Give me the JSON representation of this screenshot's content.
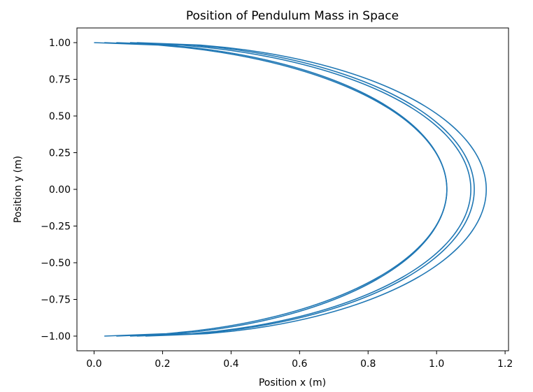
{
  "chart_data": {
    "type": "line",
    "title": "Position of Pendulum Mass in Space",
    "xlabel": "Position x (m)",
    "ylabel": "Position y (m)",
    "xlim": [
      -0.05,
      1.21
    ],
    "ylim": [
      -1.1,
      1.1
    ],
    "x_ticks": [
      0.0,
      0.2,
      0.4,
      0.6,
      0.8,
      1.0,
      1.2
    ],
    "x_tick_labels": [
      "0.0",
      "0.2",
      "0.4",
      "0.6",
      "0.8",
      "1.0",
      "1.2"
    ],
    "y_ticks": [
      1.0,
      0.75,
      0.5,
      0.25,
      0.0,
      -0.25,
      -0.5,
      -0.75,
      -1.0
    ],
    "y_tick_labels": [
      "1.00",
      "0.75",
      "0.50",
      "0.25",
      "0.00",
      "−0.25",
      "−0.50",
      "−0.75",
      "−1.00"
    ],
    "grid": false,
    "legend": false,
    "series": [
      {
        "color": "#1f77b4",
        "arcs": [
          {
            "x_start": 0.0,
            "x_end": 0.03,
            "x_max": 1.03
          },
          {
            "x_start": 0.03,
            "x_end": 0.065,
            "x_max": 1.03
          },
          {
            "x_start": 0.065,
            "x_end": 0.105,
            "x_max": 1.1
          },
          {
            "x_start": 0.105,
            "x_end": 0.125,
            "x_max": 1.11
          },
          {
            "x_start": 0.125,
            "x_end": 0.15,
            "x_max": 1.145
          }
        ]
      }
    ]
  }
}
